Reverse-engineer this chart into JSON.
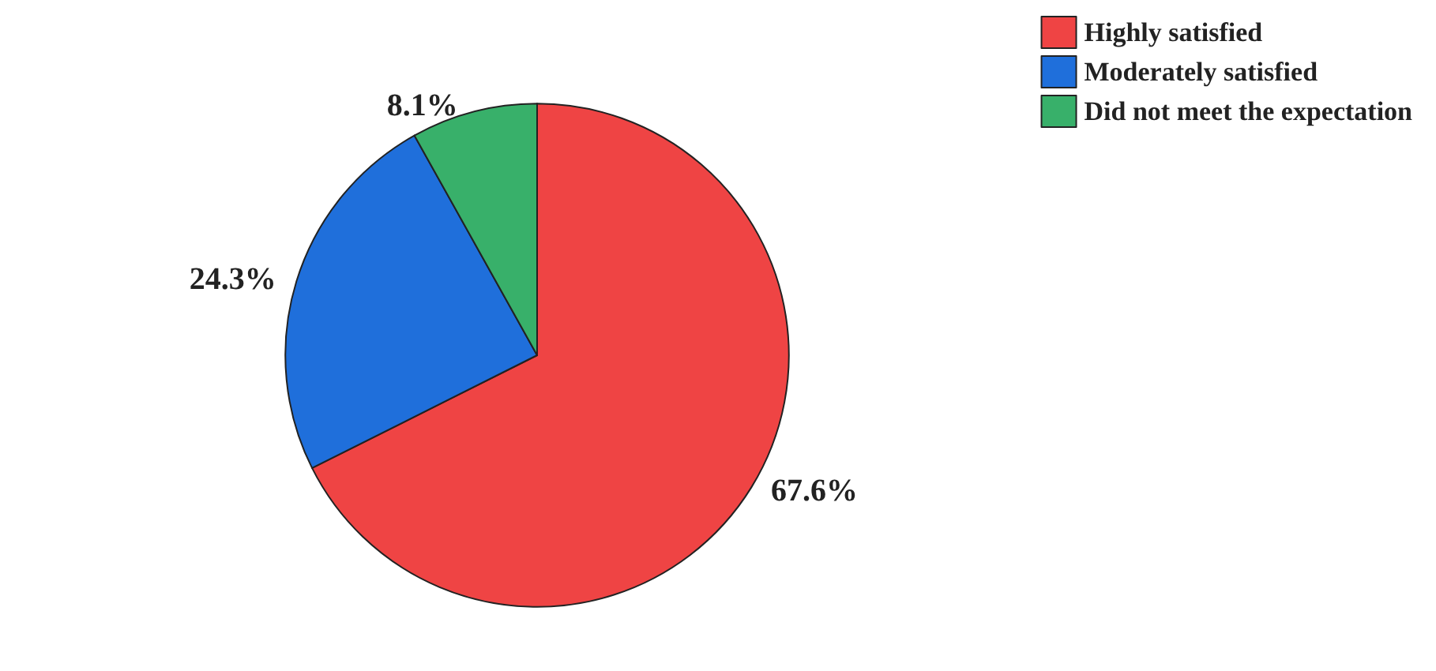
{
  "chart_data": {
    "type": "pie",
    "categories": [
      "Highly satisfied",
      "Moderately satisfied",
      "Did not meet the expectation"
    ],
    "values": [
      67.6,
      24.3,
      8.1
    ],
    "colors": [
      "#ef4444",
      "#1f6fdb",
      "#38b06a"
    ],
    "value_labels": [
      "67.6%",
      "24.3%",
      "8.1%"
    ],
    "legend": "top right"
  }
}
